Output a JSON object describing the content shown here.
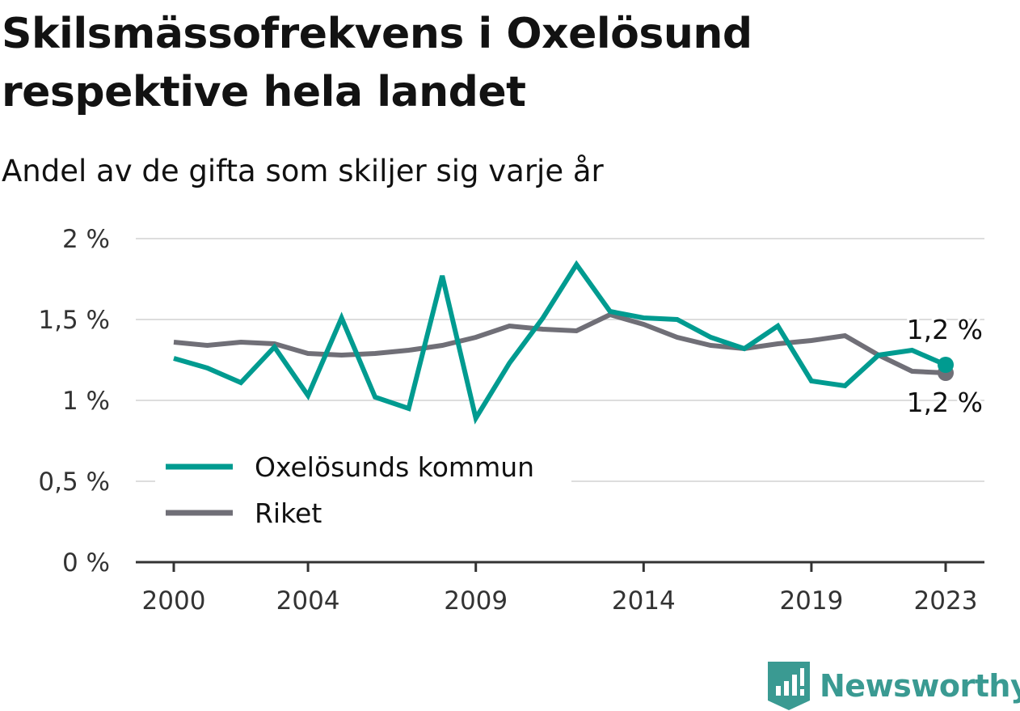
{
  "chart_data": {
    "type": "line",
    "title": "Skilsmässofrekvens i Oxelösund respektive hela landet",
    "subtitle": "Andel av de gifta som skiljer sig varje år",
    "x": [
      2000,
      2001,
      2002,
      2003,
      2004,
      2005,
      2006,
      2007,
      2008,
      2009,
      2010,
      2011,
      2012,
      2013,
      2014,
      2015,
      2016,
      2017,
      2018,
      2019,
      2020,
      2021,
      2022,
      2023
    ],
    "x_ticks": [
      2000,
      2004,
      2009,
      2014,
      2019,
      2023
    ],
    "y_ticks": [
      0,
      0.5,
      1,
      1.5,
      2
    ],
    "y_tick_labels": [
      "0 %",
      "0,5 %",
      "1 %",
      "1,5 %",
      "2 %"
    ],
    "ylim": [
      0,
      2
    ],
    "grid": "horizontal",
    "legend_position": "lower-left",
    "series": [
      {
        "name": "Oxelösunds kommun",
        "color": "#009b90",
        "values": [
          1.26,
          1.2,
          1.11,
          1.33,
          1.03,
          1.51,
          1.02,
          0.95,
          1.77,
          0.89,
          1.23,
          1.51,
          1.84,
          1.55,
          1.51,
          1.5,
          1.39,
          1.32,
          1.46,
          1.12,
          1.09,
          1.28,
          1.31,
          1.22
        ],
        "end_label": "1,2 %"
      },
      {
        "name": "Riket",
        "color": "#706f77",
        "values": [
          1.36,
          1.34,
          1.36,
          1.35,
          1.29,
          1.28,
          1.29,
          1.31,
          1.34,
          1.39,
          1.46,
          1.44,
          1.43,
          1.53,
          1.47,
          1.39,
          1.34,
          1.32,
          1.35,
          1.37,
          1.4,
          1.28,
          1.18,
          1.17
        ],
        "end_label": "1,2 %"
      }
    ]
  },
  "branding": {
    "name": "Newsworthy",
    "logo_icon": "bar-chart-tag-icon",
    "color": "#3a9a92"
  }
}
